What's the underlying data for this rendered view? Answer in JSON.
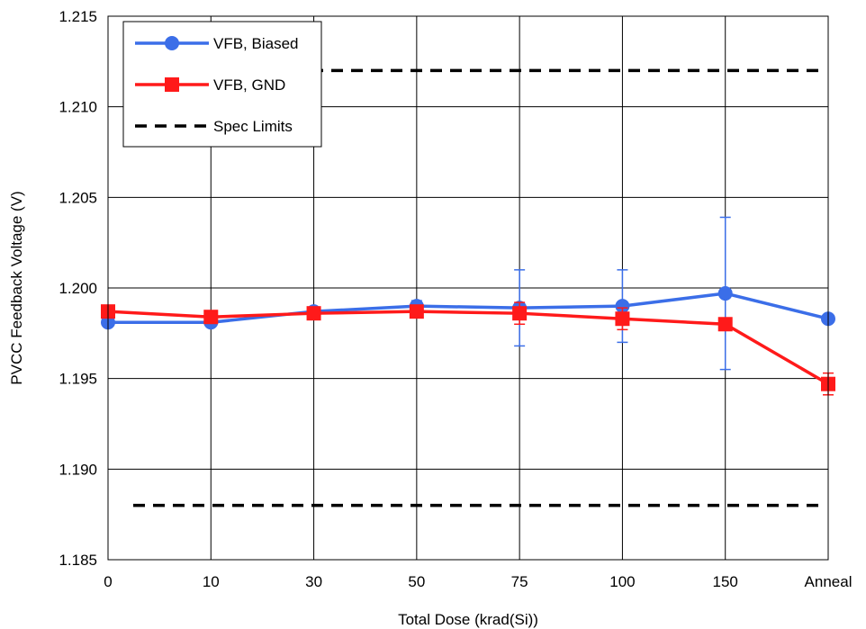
{
  "chart_data": {
    "type": "line",
    "title": "",
    "xlabel": "Total Dose (krad(Si))",
    "ylabel": "PVCC Feedback Voltage (V)",
    "categories": [
      "0",
      "10",
      "30",
      "50",
      "75",
      "100",
      "150",
      "Anneal"
    ],
    "ylim": [
      1.185,
      1.215
    ],
    "yticks": [
      "1.185",
      "1.190",
      "1.195",
      "1.200",
      "1.205",
      "1.210",
      "1.215"
    ],
    "grid": true,
    "legend_position": "top-left",
    "series": [
      {
        "name": "VFB, Biased",
        "color": "#3b6ee8",
        "marker": "circle",
        "values": [
          1.1981,
          1.1981,
          1.1987,
          1.199,
          1.1989,
          1.199,
          1.1997,
          1.1983
        ],
        "error": [
          null,
          null,
          null,
          0.0003,
          0.0021,
          0.002,
          0.0042,
          null
        ]
      },
      {
        "name": "VFB, GND",
        "color": "#ff1a1a",
        "marker": "square",
        "values": [
          1.1987,
          1.1984,
          1.1986,
          1.1987,
          1.1986,
          1.1983,
          1.198,
          1.1947
        ],
        "error": [
          null,
          null,
          null,
          null,
          0.0006,
          0.0006,
          null,
          0.0006
        ]
      }
    ],
    "reference_lines": {
      "name": "Spec Limits",
      "color": "#000000",
      "style": "dashed",
      "values": [
        1.212,
        1.188
      ]
    }
  }
}
